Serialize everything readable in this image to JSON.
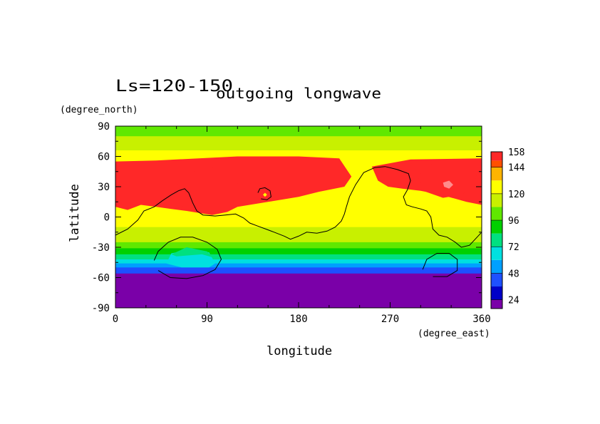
{
  "chart_data": {
    "type": "heatmap",
    "title": "outgoing longwave",
    "subtitle": "Ls=120-150",
    "xlabel": "longitude",
    "ylabel": "latitude",
    "x_unit": "(degree_east)",
    "y_unit": "(degree_north)",
    "xlim": [
      0,
      360
    ],
    "ylim": [
      -90,
      90
    ],
    "x_ticks": [
      "0",
      "90",
      "180",
      "270",
      "360"
    ],
    "y_ticks": [
      "90",
      "60",
      "30",
      "0",
      "-30",
      "-60",
      "-90"
    ],
    "x_tick_values": [
      0,
      90,
      180,
      270,
      360
    ],
    "y_tick_values": [
      90,
      60,
      30,
      0,
      -30,
      -60,
      -90
    ],
    "colorbar": {
      "min": 16,
      "max": 158,
      "labels": [
        "158",
        "144",
        "120",
        "96",
        "72",
        "48",
        "24"
      ],
      "label_values": [
        158,
        144,
        120,
        96,
        72,
        48,
        24
      ],
      "levels": [
        16,
        24,
        36,
        48,
        60,
        72,
        84,
        96,
        108,
        120,
        132,
        144,
        150,
        158
      ],
      "colors": [
        "#7a00a8",
        "#0000c8",
        "#1e50ff",
        "#00a0ff",
        "#00e0e0",
        "#00e080",
        "#00d000",
        "#60e800",
        "#c8f000",
        "#ffff00",
        "#ffb400",
        "#ff5000",
        "#ff2828",
        "#ff8c8c"
      ]
    },
    "background_bands": [
      {
        "lat_top": 90,
        "lat_bottom": 84,
        "value": 96
      },
      {
        "lat_top": 84,
        "lat_bottom": 80,
        "value": 100
      },
      {
        "lat_top": 80,
        "lat_bottom": 72,
        "value": 110
      },
      {
        "lat_top": 72,
        "lat_bottom": 66,
        "value": 115
      },
      {
        "lat_top": 66,
        "lat_bottom": 60,
        "value": 125
      },
      {
        "lat_top": 60,
        "lat_bottom": -10,
        "value": 125
      },
      {
        "lat_top": -10,
        "lat_bottom": -18,
        "value": 115
      },
      {
        "lat_top": -18,
        "lat_bottom": -25,
        "value": 110
      },
      {
        "lat_top": -25,
        "lat_bottom": -31,
        "value": 100
      },
      {
        "lat_top": -31,
        "lat_bottom": -37,
        "value": 90
      },
      {
        "lat_top": -37,
        "lat_bottom": -42,
        "value": 80
      },
      {
        "lat_top": -42,
        "lat_bottom": -46,
        "value": 70
      },
      {
        "lat_top": -46,
        "lat_bottom": -50,
        "value": 55
      },
      {
        "lat_top": -50,
        "lat_bottom": -56,
        "value": 40
      },
      {
        "lat_top": -56,
        "lat_bottom": -90,
        "value": 20
      }
    ],
    "regions": [
      {
        "value": 150,
        "points": [
          [
            0,
            55
          ],
          [
            40,
            56
          ],
          [
            120,
            60
          ],
          [
            180,
            60
          ],
          [
            220,
            58
          ],
          [
            232,
            40
          ],
          [
            225,
            30
          ],
          [
            200,
            25
          ],
          [
            180,
            20
          ],
          [
            150,
            15
          ],
          [
            120,
            10
          ],
          [
            110,
            5
          ],
          [
            95,
            2
          ],
          [
            70,
            6
          ],
          [
            55,
            8
          ],
          [
            40,
            10
          ],
          [
            25,
            12
          ],
          [
            12,
            7
          ],
          [
            0,
            10
          ]
        ]
      },
      {
        "value": 150,
        "points": [
          [
            252,
            50
          ],
          [
            290,
            57
          ],
          [
            360,
            58
          ],
          [
            360,
            12
          ],
          [
            345,
            15
          ],
          [
            320,
            22
          ],
          [
            300,
            26
          ],
          [
            282,
            28
          ],
          [
            268,
            30
          ],
          [
            258,
            36
          ]
        ]
      },
      {
        "value": 154,
        "points": [
          [
            303,
            50
          ],
          [
            320,
            55
          ],
          [
            350,
            54
          ],
          [
            356,
            46
          ],
          [
            352,
            30
          ],
          [
            340,
            22
          ],
          [
            322,
            19
          ],
          [
            305,
            25
          ],
          [
            298,
            38
          ]
        ]
      },
      {
        "value": 154,
        "points": [
          [
            75,
            50
          ],
          [
            88,
            47
          ],
          [
            96,
            50
          ],
          [
            90,
            43
          ],
          [
            80,
            44
          ],
          [
            74,
            47
          ]
        ]
      },
      {
        "value": 154,
        "points": [
          [
            58,
            32
          ],
          [
            70,
            34
          ],
          [
            74,
            26
          ],
          [
            70,
            12
          ],
          [
            62,
            9
          ],
          [
            58,
            18
          ]
        ]
      },
      {
        "value": 154,
        "points": [
          [
            117,
            32
          ],
          [
            128,
            36
          ],
          [
            135,
            32
          ],
          [
            130,
            24
          ],
          [
            121,
            25
          ]
        ]
      },
      {
        "value": 158,
        "points": [
          [
            322,
            34
          ],
          [
            328,
            36
          ],
          [
            332,
            32
          ],
          [
            328,
            28
          ],
          [
            323,
            30
          ]
        ]
      },
      {
        "value": 125,
        "points": [
          [
            145,
            22
          ],
          [
            147,
            24
          ],
          [
            149,
            22
          ],
          [
            147,
            20
          ]
        ]
      },
      {
        "value": 70,
        "points": [
          [
            50,
            -46
          ],
          [
            55,
            -36
          ],
          [
            70,
            -33
          ],
          [
            92,
            -35
          ],
          [
            98,
            -46
          ],
          [
            92,
            -50
          ],
          [
            65,
            -50
          ]
        ]
      },
      {
        "value": 82,
        "points": [
          [
            55,
            -37
          ],
          [
            70,
            -30
          ],
          [
            90,
            -34
          ],
          [
            96,
            -40
          ],
          [
            85,
            -37
          ],
          [
            60,
            -39
          ]
        ]
      }
    ],
    "contour_lines": [
      {
        "points": [
          [
            0,
            -18
          ],
          [
            12,
            -12
          ],
          [
            22,
            -3
          ],
          [
            28,
            6
          ],
          [
            38,
            10
          ],
          [
            46,
            16
          ],
          [
            55,
            22
          ],
          [
            62,
            26
          ],
          [
            68,
            28
          ],
          [
            72,
            24
          ],
          [
            76,
            14
          ],
          [
            80,
            6
          ],
          [
            86,
            2
          ],
          [
            98,
            1
          ],
          [
            108,
            2
          ],
          [
            118,
            3
          ],
          [
            126,
            -1
          ],
          [
            132,
            -6
          ],
          [
            140,
            -9
          ],
          [
            148,
            -12
          ],
          [
            156,
            -15
          ],
          [
            166,
            -19
          ],
          [
            172,
            -22
          ],
          [
            180,
            -19
          ],
          [
            188,
            -15
          ],
          [
            198,
            -16
          ],
          [
            208,
            -14
          ],
          [
            216,
            -10
          ],
          [
            222,
            -4
          ],
          [
            225,
            3
          ],
          [
            227,
            10
          ],
          [
            230,
            20
          ],
          [
            236,
            32
          ],
          [
            244,
            44
          ],
          [
            255,
            49
          ],
          [
            265,
            50
          ],
          [
            277,
            47
          ],
          [
            288,
            43
          ],
          [
            290,
            36
          ],
          [
            287,
            27
          ],
          [
            283,
            20
          ],
          [
            286,
            12
          ],
          [
            292,
            10
          ],
          [
            300,
            8
          ],
          [
            306,
            6
          ],
          [
            310,
            0
          ],
          [
            312,
            -12
          ],
          [
            318,
            -18
          ],
          [
            326,
            -20
          ],
          [
            334,
            -25
          ],
          [
            340,
            -30
          ],
          [
            348,
            -28
          ],
          [
            360,
            -15
          ]
        ]
      },
      {
        "points": [
          [
            140,
            24
          ],
          [
            142,
            28
          ],
          [
            147,
            29
          ],
          [
            152,
            26
          ],
          [
            153,
            20
          ],
          [
            149,
            17
          ],
          [
            143,
            18
          ]
        ]
      },
      {
        "points": [
          [
            38,
            -43
          ],
          [
            42,
            -34
          ],
          [
            52,
            -25
          ],
          [
            64,
            -20
          ],
          [
            76,
            -20
          ],
          [
            90,
            -25
          ],
          [
            100,
            -32
          ],
          [
            104,
            -42
          ],
          [
            98,
            -52
          ],
          [
            86,
            -58
          ],
          [
            70,
            -61
          ],
          [
            54,
            -60
          ],
          [
            42,
            -53
          ]
        ]
      },
      {
        "points": [
          [
            302,
            -52
          ],
          [
            306,
            -42
          ],
          [
            316,
            -36
          ],
          [
            328,
            -36
          ],
          [
            336,
            -42
          ],
          [
            336,
            -53
          ],
          [
            326,
            -59
          ],
          [
            312,
            -59
          ]
        ]
      }
    ]
  }
}
